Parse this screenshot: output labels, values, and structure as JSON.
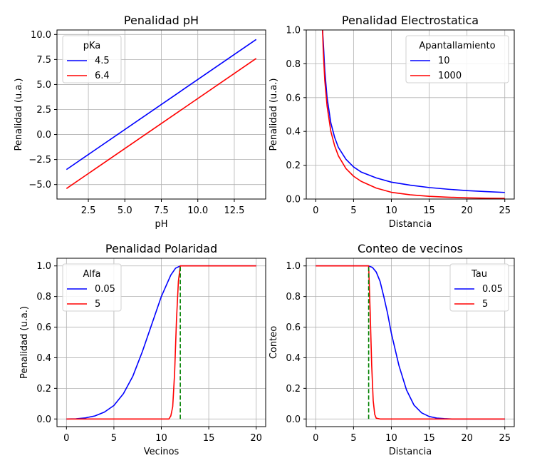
{
  "chart_data": [
    {
      "type": "line",
      "title": "Penalidad pH",
      "xlabel": "pH",
      "ylabel": "Penalidad (u.a.)",
      "xlim": [
        0.35,
        14.65
      ],
      "ylim": [
        -6.45,
        10.45
      ],
      "xticks": [
        2.5,
        5.0,
        7.5,
        10.0,
        12.5
      ],
      "xtick_labels": [
        "2.5",
        "5.0",
        "7.5",
        "10.0",
        "12.5"
      ],
      "yticks": [
        -5.0,
        -2.5,
        0.0,
        2.5,
        5.0,
        7.5,
        10.0
      ],
      "ytick_labels": [
        "−5.0",
        "−2.5",
        "0.0",
        "2.5",
        "5.0",
        "7.5",
        "10.0"
      ],
      "grid": true,
      "legend": {
        "title": "pKa",
        "position": "top-left"
      },
      "series": [
        {
          "name": "4.5",
          "color": "#0000ff",
          "x": [
            1,
            14
          ],
          "y": [
            -3.5,
            9.5
          ]
        },
        {
          "name": "6.4",
          "color": "#ff0000",
          "x": [
            1,
            14
          ],
          "y": [
            -5.4,
            7.6
          ]
        }
      ]
    },
    {
      "type": "line",
      "title": "Penalidad Electrostatica",
      "xlabel": "Distancia",
      "ylabel": "Penalidad (u.a.)",
      "xlim": [
        -1.25,
        26.25
      ],
      "ylim": [
        0,
        1
      ],
      "xticks": [
        0,
        5,
        10,
        15,
        20,
        25
      ],
      "xtick_labels": [
        "0",
        "5",
        "10",
        "15",
        "20",
        "25"
      ],
      "yticks": [
        0,
        0.2,
        0.4,
        0.6,
        0.8,
        1.0
      ],
      "ytick_labels": [
        "0.0",
        "0.2",
        "0.4",
        "0.6",
        "0.8",
        "1.0"
      ],
      "grid": true,
      "legend": {
        "title": "Apantallamiento",
        "position": "top-right"
      },
      "series": [
        {
          "name": "10",
          "color": "#0000ff",
          "x": [
            0.9,
            1.0,
            1.2,
            1.5,
            2.0,
            2.5,
            3.0,
            4.0,
            5.0,
            6.0,
            8.0,
            10.0,
            12.5,
            15.0,
            17.5,
            20.0,
            22.5,
            25.0
          ],
          "y": [
            1.0,
            0.93,
            0.76,
            0.6,
            0.45,
            0.365,
            0.305,
            0.235,
            0.19,
            0.16,
            0.125,
            0.1,
            0.082,
            0.068,
            0.058,
            0.05,
            0.044,
            0.039
          ]
        },
        {
          "name": "1000",
          "color": "#ff0000",
          "x": [
            0.9,
            1.0,
            1.2,
            1.5,
            2.0,
            2.5,
            3.0,
            4.0,
            5.0,
            6.0,
            8.0,
            10.0,
            12.5,
            15.0,
            17.5,
            20.0,
            22.5,
            25.0
          ],
          "y": [
            1.0,
            0.87,
            0.7,
            0.55,
            0.4,
            0.315,
            0.255,
            0.18,
            0.135,
            0.105,
            0.065,
            0.04,
            0.025,
            0.016,
            0.011,
            0.007,
            0.005,
            0.004
          ]
        }
      ]
    },
    {
      "type": "line",
      "title": "Penalidad Polaridad",
      "xlabel": "Vecinos",
      "ylabel": "Penalidad (u.a.)",
      "xlim": [
        -1,
        21
      ],
      "ylim": [
        -0.05,
        1.05
      ],
      "xticks": [
        0,
        5,
        10,
        15,
        20
      ],
      "xtick_labels": [
        "0",
        "5",
        "10",
        "15",
        "20"
      ],
      "yticks": [
        0,
        0.2,
        0.4,
        0.6,
        0.8,
        1.0
      ],
      "ytick_labels": [
        "0.0",
        "0.2",
        "0.4",
        "0.6",
        "0.8",
        "1.0"
      ],
      "grid": true,
      "legend": {
        "title": "Alfa",
        "position": "top-left"
      },
      "vline": {
        "x": 12,
        "y": [
          0,
          1
        ],
        "color": "#008000"
      },
      "series": [
        {
          "name": "0.05",
          "color": "#0000ff",
          "x": [
            0,
            1,
            2,
            3,
            4,
            5,
            6,
            7,
            8,
            9,
            10,
            11,
            11.5,
            12,
            13,
            14,
            16,
            18,
            20
          ],
          "y": [
            0.0,
            0.001,
            0.007,
            0.02,
            0.045,
            0.088,
            0.165,
            0.28,
            0.44,
            0.62,
            0.8,
            0.94,
            0.985,
            1.0,
            1.0,
            1.0,
            1.0,
            1.0,
            1.0
          ]
        },
        {
          "name": "5",
          "color": "#ff0000",
          "x": [
            0,
            2,
            4,
            6,
            8,
            10,
            10.8,
            11.0,
            11.2,
            11.4,
            11.6,
            11.8,
            12.0,
            13,
            15,
            17,
            20
          ],
          "y": [
            0.0,
            0.0,
            0.0,
            0.0,
            0.0,
            0.0,
            0.0,
            0.02,
            0.08,
            0.3,
            0.65,
            0.9,
            1.0,
            1.0,
            1.0,
            1.0,
            1.0
          ]
        }
      ]
    },
    {
      "type": "line",
      "title": "Conteo de vecinos",
      "xlabel": "Distancia",
      "ylabel": "Conteo",
      "xlim": [
        -1.25,
        26.25
      ],
      "ylim": [
        -0.05,
        1.05
      ],
      "xticks": [
        0,
        5,
        10,
        15,
        20,
        25
      ],
      "xtick_labels": [
        "0",
        "5",
        "10",
        "15",
        "20",
        "25"
      ],
      "yticks": [
        0,
        0.2,
        0.4,
        0.6,
        0.8,
        1.0
      ],
      "ytick_labels": [
        "0.0",
        "0.2",
        "0.4",
        "0.6",
        "0.8",
        "1.0"
      ],
      "grid": true,
      "legend": {
        "title": "Tau",
        "position": "top-right"
      },
      "vline": {
        "x": 7,
        "y": [
          0,
          1
        ],
        "color": "#008000"
      },
      "series": [
        {
          "name": "0.05",
          "color": "#0000ff",
          "x": [
            0,
            2,
            4,
            6,
            7,
            7.5,
            8,
            8.5,
            9,
            9.5,
            10,
            11,
            12,
            13,
            14,
            15,
            16,
            17,
            18,
            20,
            22,
            25
          ],
          "y": [
            1.0,
            1.0,
            1.0,
            1.0,
            1.0,
            0.99,
            0.96,
            0.9,
            0.8,
            0.69,
            0.56,
            0.35,
            0.19,
            0.09,
            0.04,
            0.016,
            0.006,
            0.002,
            0.0,
            0.0,
            0.0,
            0.0
          ]
        },
        {
          "name": "5",
          "color": "#ff0000",
          "x": [
            0,
            2,
            4,
            6,
            6.9,
            7.0,
            7.2,
            7.4,
            7.6,
            7.8,
            8.0,
            8.5,
            10,
            15,
            20,
            25
          ],
          "y": [
            1.0,
            1.0,
            1.0,
            1.0,
            1.0,
            1.0,
            0.7,
            0.35,
            0.12,
            0.03,
            0.005,
            0.0,
            0.0,
            0.0,
            0.0,
            0.0
          ]
        }
      ]
    }
  ]
}
